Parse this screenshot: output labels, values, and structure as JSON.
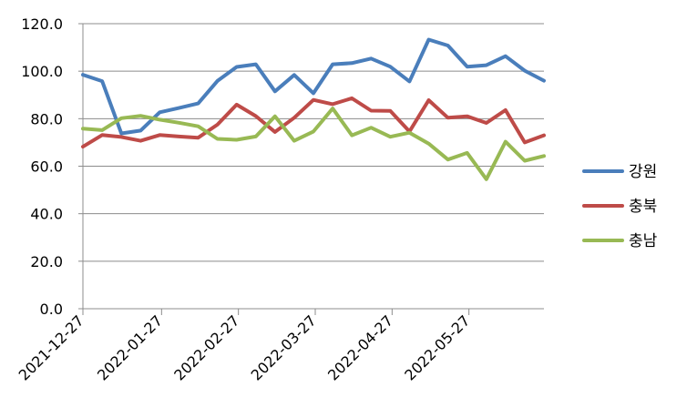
{
  "chart_data": {
    "type": "line",
    "title": "",
    "xlabel": "",
    "ylabel": "",
    "ylim": [
      0,
      120
    ],
    "yticks": [
      "0.0",
      "20.0",
      "40.0",
      "60.0",
      "80.0",
      "100.0",
      "120.0"
    ],
    "grid": true,
    "legend_position": "right",
    "x_tick_labels": [
      "2021-12-27",
      "2022-01-27",
      "2022-02-27",
      "2022-03-27",
      "2022-04-27",
      "2022-05-27"
    ],
    "x_tick_indices": [
      0,
      4,
      8,
      12,
      16,
      20
    ],
    "x": [
      "2021-12-27",
      "2022-01-03",
      "2022-01-10",
      "2022-01-17",
      "2022-01-24",
      "2022-01-31",
      "2022-02-07",
      "2022-02-14",
      "2022-02-21",
      "2022-02-28",
      "2022-03-07",
      "2022-03-14",
      "2022-03-21",
      "2022-03-28",
      "2022-04-04",
      "2022-04-11",
      "2022-04-18",
      "2022-04-25",
      "2022-05-02",
      "2022-05-09",
      "2022-05-16",
      "2022-05-23",
      "2022-05-30",
      "2022-06-06",
      "2022-06-13"
    ],
    "series": [
      {
        "name": "강원",
        "color": "#4a7ebb",
        "values": [
          98.5,
          95.8,
          73.8,
          75.0,
          82.7,
          84.5,
          86.4,
          95.9,
          101.8,
          102.9,
          91.5,
          98.4,
          90.7,
          102.9,
          103.4,
          105.3,
          101.9,
          95.7,
          113.3,
          110.8,
          101.9,
          102.5,
          106.3,
          100.2,
          96.0
        ]
      },
      {
        "name": "충북",
        "color": "#be4b48",
        "values": [
          68.2,
          73.1,
          72.3,
          70.7,
          73.1,
          72.5,
          72.0,
          77.5,
          85.9,
          81.1,
          74.4,
          80.4,
          87.9,
          86.1,
          88.6,
          83.4,
          83.3,
          74.6,
          87.8,
          80.4,
          81.0,
          78.2,
          83.6,
          70.0,
          73.0
        ]
      },
      {
        "name": "충남",
        "color": "#98b954",
        "values": [
          75.8,
          75.2,
          80.2,
          81.2,
          79.6,
          78.3,
          76.8,
          71.5,
          71.1,
          72.5,
          81.0,
          70.7,
          74.6,
          84.3,
          73.0,
          76.2,
          72.4,
          74.1,
          69.5,
          62.8,
          65.6,
          54.5,
          70.3,
          62.3,
          64.3
        ]
      }
    ]
  }
}
